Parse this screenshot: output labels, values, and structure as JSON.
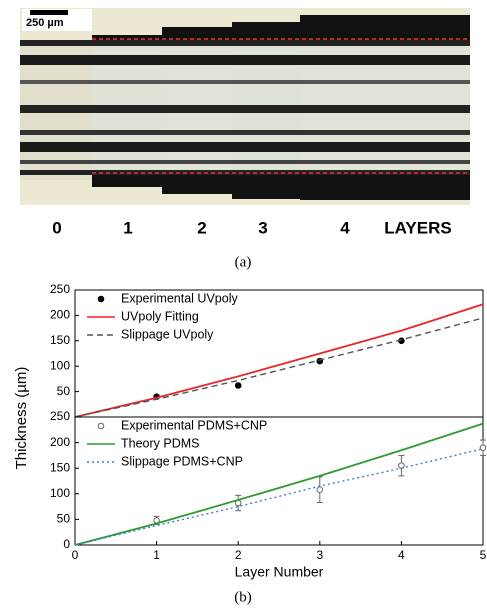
{
  "figure_a": {
    "scale_bar": "250 µm",
    "layer_labels": [
      "0",
      "1",
      "2",
      "3",
      "4",
      "LAYERS"
    ],
    "caption": "(a)"
  },
  "figure_b": {
    "y_label": "Thickness (µm)",
    "caption": "(b)"
  },
  "chart_data": [
    {
      "type": "line",
      "xlim": [
        0,
        5
      ],
      "ylim": [
        0,
        250
      ],
      "yticks": [
        50,
        100,
        150,
        200,
        250
      ],
      "legend": "upper-left",
      "series": [
        {
          "name": "Experimental UVpoly",
          "style": "points",
          "marker": "filled",
          "color": "#000000",
          "x": [
            1,
            2,
            3,
            4
          ],
          "values": [
            40,
            62,
            110,
            150
          ]
        },
        {
          "name": "UVpoly Fitting",
          "style": "line",
          "dash": "solid",
          "color": "#e8262b",
          "x": [
            0,
            1,
            2,
            3,
            4,
            5
          ],
          "values": [
            0,
            38,
            80,
            125,
            170,
            222
          ]
        },
        {
          "name": "Slippage UVpoly",
          "style": "line",
          "dash": "dashed",
          "color": "#555555",
          "x": [
            0,
            1,
            2,
            3,
            4,
            5
          ],
          "values": [
            0,
            35,
            72,
            112,
            152,
            195
          ]
        }
      ]
    },
    {
      "type": "line",
      "xlim": [
        0,
        5
      ],
      "ylim": [
        0,
        250
      ],
      "yticks": [
        0,
        50,
        100,
        150,
        200,
        250
      ],
      "xticks": [
        0,
        1,
        2,
        3,
        4,
        5
      ],
      "x_label": "Layer Number",
      "legend": "upper-left",
      "series": [
        {
          "name": "Experimental PDMS+CNP",
          "style": "points",
          "marker": "open",
          "color": "#666666",
          "x": [
            1,
            2,
            3,
            4,
            5
          ],
          "values": [
            48,
            82,
            108,
            155,
            190
          ],
          "errors": [
            8,
            15,
            25,
            20,
            15
          ]
        },
        {
          "name": "Theory PDMS",
          "style": "line",
          "dash": "solid",
          "color": "#2e9a2e",
          "x": [
            0,
            1,
            2,
            3,
            4,
            5
          ],
          "values": [
            0,
            42,
            88,
            135,
            185,
            237
          ]
        },
        {
          "name": "Slippage PDMS+CNP",
          "style": "line",
          "dash": "dotted",
          "color": "#3f7fd0",
          "x": [
            0,
            1,
            2,
            3,
            4,
            5
          ],
          "values": [
            0,
            38,
            75,
            115,
            150,
            188
          ]
        }
      ]
    }
  ]
}
